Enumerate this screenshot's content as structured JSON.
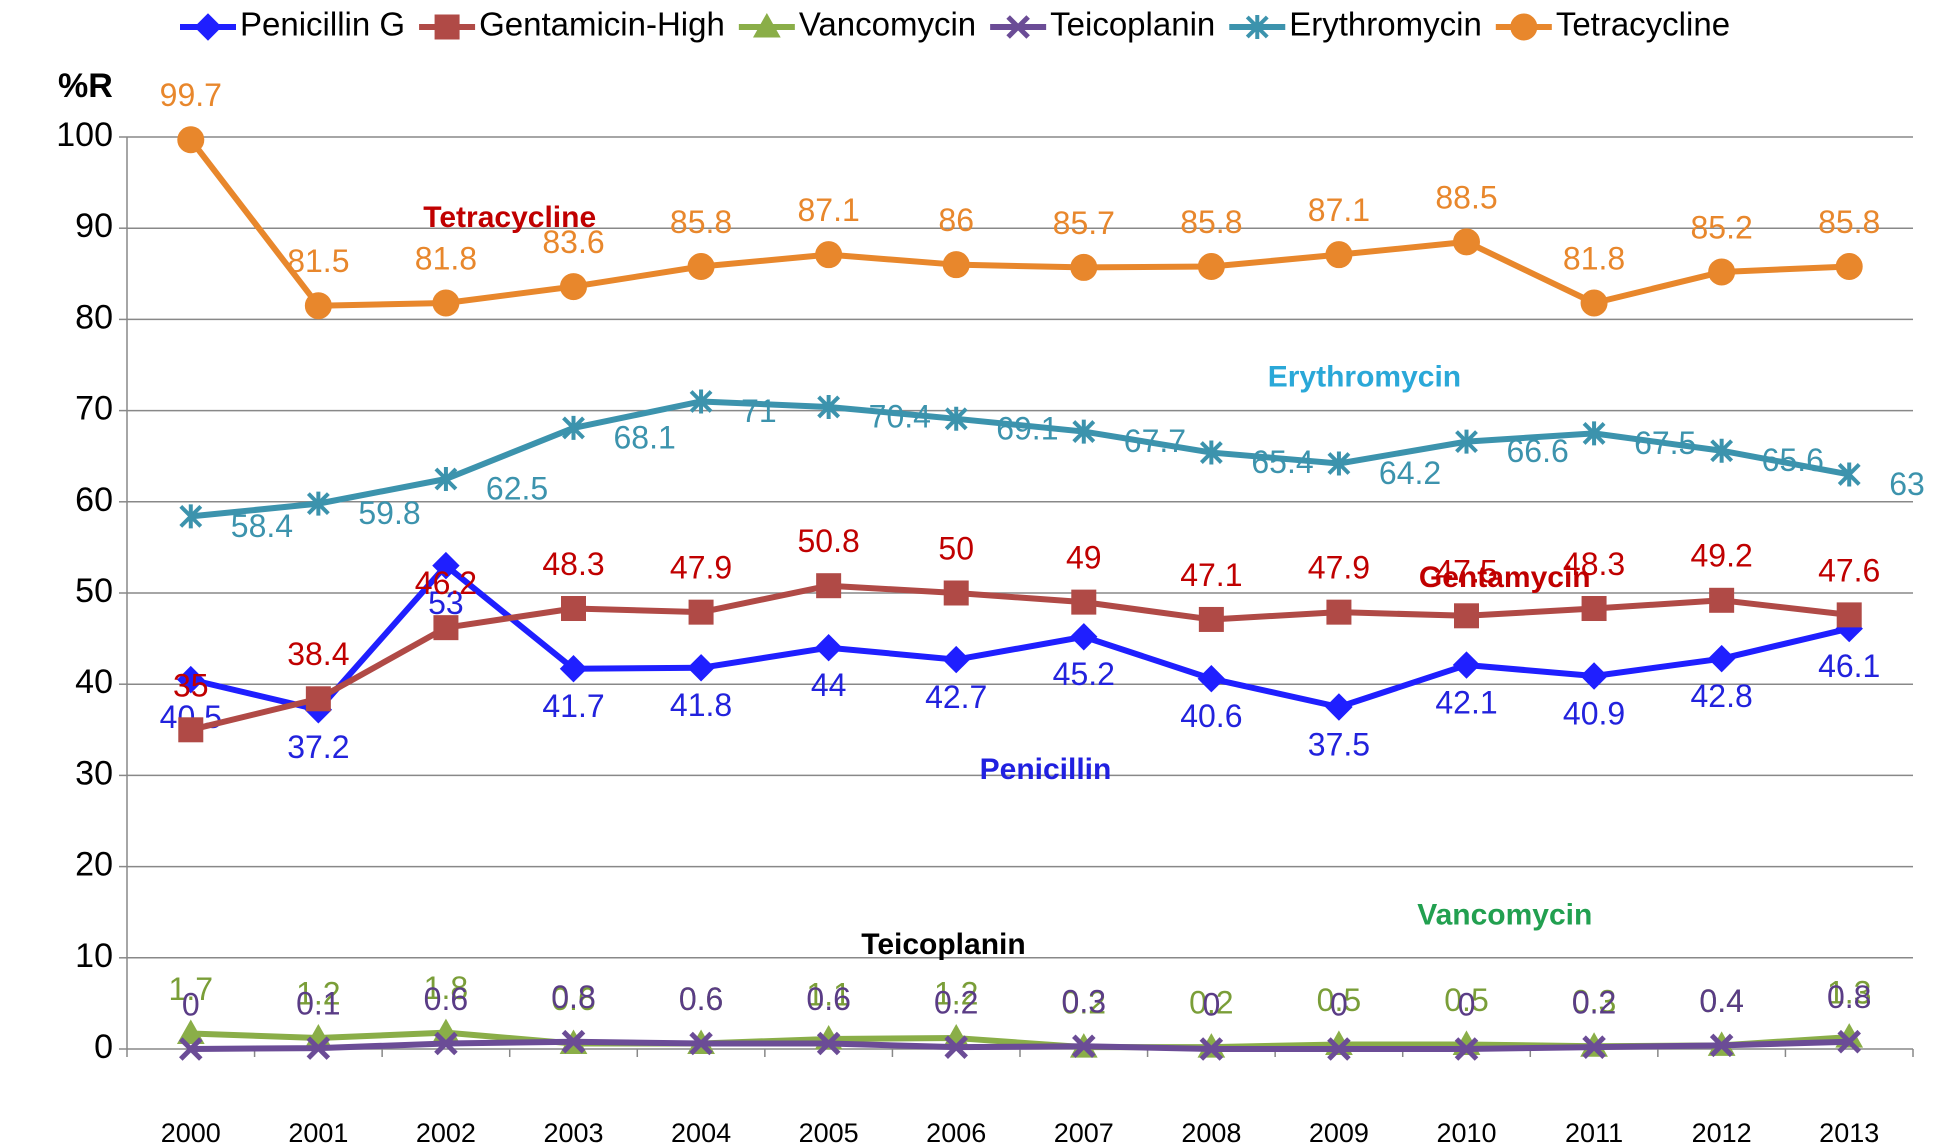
{
  "chart_data": {
    "type": "line",
    "y_label": "%R",
    "categories": [
      "2000",
      "2001",
      "2002",
      "2003",
      "2004",
      "2005",
      "2006",
      "2007",
      "2008",
      "2009",
      "2010",
      "2011",
      "2012",
      "2013"
    ],
    "ylim": [
      0,
      100
    ],
    "yticks": [
      0,
      10,
      20,
      30,
      40,
      50,
      60,
      70,
      80,
      90,
      100
    ],
    "grid": true,
    "legend": "top",
    "series": [
      {
        "name": "Penicillin G",
        "color": "#1f1fff",
        "marker": "diamond",
        "values": [
          40.5,
          37.2,
          53,
          41.7,
          41.8,
          44,
          42.7,
          45.2,
          40.6,
          37.5,
          42.1,
          40.9,
          42.8,
          46.1
        ]
      },
      {
        "name": "Gentamicin-High",
        "color": "#b04a46",
        "marker": "square",
        "values": [
          35,
          38.4,
          46.2,
          48.3,
          47.9,
          50.8,
          50,
          49,
          47.1,
          47.9,
          47.5,
          48.3,
          49.2,
          47.6
        ]
      },
      {
        "name": "Vancomycin",
        "color": "#8aae48",
        "marker": "triangle",
        "values": [
          1.7,
          1.2,
          1.8,
          0.6,
          0.6,
          1.1,
          1.2,
          0.2,
          0.2,
          0.5,
          0.5,
          0.3,
          0.4,
          1.3
        ]
      },
      {
        "name": "Teicoplanin",
        "color": "#6b4c96",
        "marker": "x",
        "values": [
          0,
          0.1,
          0.6,
          0.8,
          0.6,
          0.6,
          0.2,
          0.3,
          0,
          0,
          0,
          0.2,
          0.4,
          0.8
        ]
      },
      {
        "name": "Erythromycin",
        "color": "#3c93ad",
        "marker": "star",
        "values": [
          58.4,
          59.8,
          62.5,
          68.1,
          71,
          70.4,
          69.1,
          67.7,
          65.4,
          64.2,
          66.6,
          67.5,
          65.6,
          63
        ]
      },
      {
        "name": "Tetracycline",
        "color": "#e8872c",
        "marker": "circle",
        "values": [
          99.7,
          81.5,
          81.8,
          83.6,
          85.8,
          87.1,
          86,
          85.7,
          85.8,
          87.1,
          88.5,
          81.8,
          85.2,
          85.8
        ]
      }
    ],
    "annotations": [
      {
        "text": "Tetracycline",
        "color": "#c00000",
        "x": 2.5,
        "y": 91
      },
      {
        "text": "Erythromycin",
        "color": "#2aa8d8",
        "x": 9.2,
        "y": 73.5
      },
      {
        "text": "Gentamycin",
        "color": "#c00000",
        "x": 10.3,
        "y": 51.5
      },
      {
        "text": "Penicillin",
        "color": "#2020e0",
        "x": 6.7,
        "y": 30.5
      },
      {
        "text": "Vancomycin",
        "color": "#22a050",
        "x": 10.3,
        "y": 14.5
      },
      {
        "text": "Teicoplanin",
        "color": "#000000",
        "x": 5.9,
        "y": 11.3
      }
    ]
  }
}
